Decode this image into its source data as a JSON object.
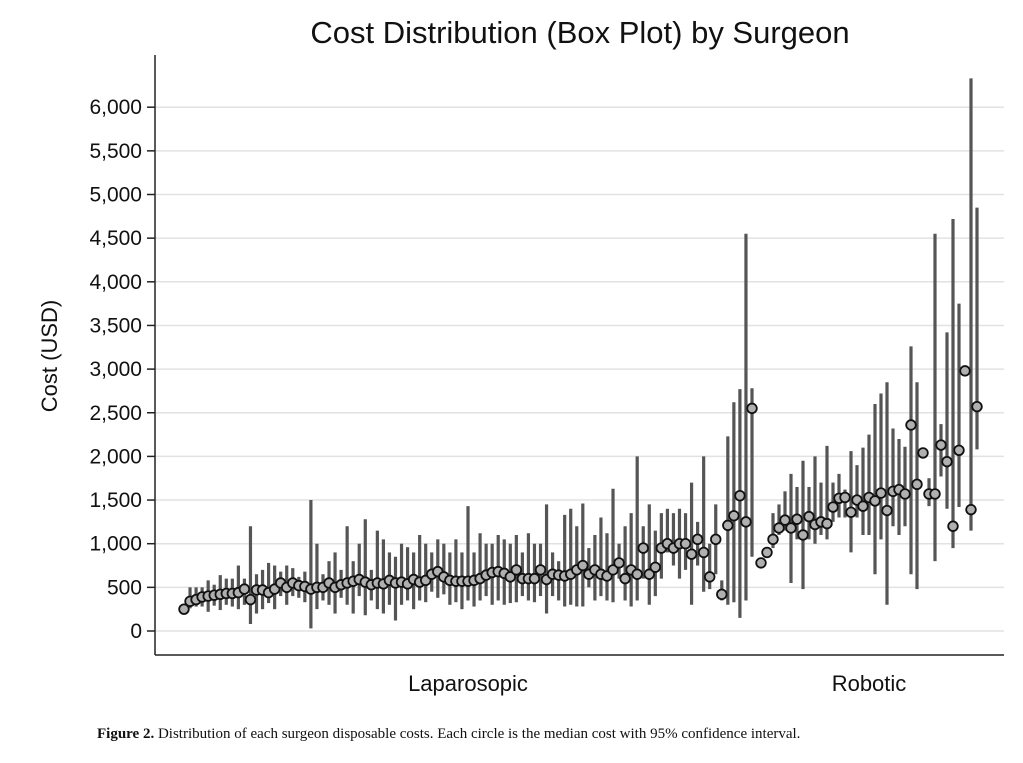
{
  "chart_data": {
    "type": "scatter",
    "subtype": "median-with-confidence-interval",
    "title": "Cost Distribution (Box Plot) by Surgeon",
    "xlabel": "",
    "ylabel": "Cost (USD)",
    "ylim": [
      -250,
      6600
    ],
    "yticks": [
      0,
      500,
      1000,
      1500,
      2000,
      2500,
      3000,
      3500,
      4000,
      4500,
      5000,
      5500,
      6000
    ],
    "ytick_labels": [
      "0",
      "500",
      "1,000",
      "1,500",
      "2,000",
      "2,500",
      "3,000",
      "3,500",
      "4,000",
      "4,500",
      "5,000",
      "5,500",
      "6,000"
    ],
    "grid": true,
    "legend": null,
    "groups": [
      {
        "name": "Laparosopic",
        "series": [
          {
            "median": 250,
            "low": 220,
            "high": 290
          },
          {
            "median": 340,
            "low": 260,
            "high": 500
          },
          {
            "median": 360,
            "low": 280,
            "high": 500
          },
          {
            "median": 390,
            "low": 280,
            "high": 500
          },
          {
            "median": 400,
            "low": 220,
            "high": 580
          },
          {
            "median": 410,
            "low": 290,
            "high": 530
          },
          {
            "median": 420,
            "low": 240,
            "high": 640
          },
          {
            "median": 430,
            "low": 300,
            "high": 600
          },
          {
            "median": 430,
            "low": 280,
            "high": 600
          },
          {
            "median": 440,
            "low": 250,
            "high": 750
          },
          {
            "median": 480,
            "low": 300,
            "high": 600
          },
          {
            "median": 360,
            "low": 80,
            "high": 1200
          },
          {
            "median": 470,
            "low": 200,
            "high": 650
          },
          {
            "median": 470,
            "low": 250,
            "high": 700
          },
          {
            "median": 440,
            "low": 320,
            "high": 780
          },
          {
            "median": 480,
            "low": 250,
            "high": 750
          },
          {
            "median": 550,
            "low": 400,
            "high": 680
          },
          {
            "median": 500,
            "low": 300,
            "high": 750
          },
          {
            "median": 550,
            "low": 400,
            "high": 720
          },
          {
            "median": 520,
            "low": 380,
            "high": 620
          },
          {
            "median": 510,
            "low": 330,
            "high": 680
          },
          {
            "median": 480,
            "low": 30,
            "high": 1500
          },
          {
            "median": 500,
            "low": 250,
            "high": 1000
          },
          {
            "median": 500,
            "low": 350,
            "high": 650
          },
          {
            "median": 550,
            "low": 300,
            "high": 800
          },
          {
            "median": 500,
            "low": 200,
            "high": 900
          },
          {
            "median": 530,
            "low": 380,
            "high": 700
          },
          {
            "median": 550,
            "low": 300,
            "high": 1200
          },
          {
            "median": 570,
            "low": 200,
            "high": 800
          },
          {
            "median": 590,
            "low": 400,
            "high": 1000
          },
          {
            "median": 560,
            "low": 180,
            "high": 1280
          },
          {
            "median": 530,
            "low": 350,
            "high": 700
          },
          {
            "median": 550,
            "low": 250,
            "high": 1150
          },
          {
            "median": 540,
            "low": 200,
            "high": 1050
          },
          {
            "median": 580,
            "low": 300,
            "high": 900
          },
          {
            "median": 550,
            "low": 120,
            "high": 850
          },
          {
            "median": 560,
            "low": 300,
            "high": 1000
          },
          {
            "median": 540,
            "low": 350,
            "high": 960
          },
          {
            "median": 590,
            "low": 250,
            "high": 900
          },
          {
            "median": 560,
            "low": 350,
            "high": 1100
          },
          {
            "median": 580,
            "low": 330,
            "high": 1000
          },
          {
            "median": 650,
            "low": 450,
            "high": 900
          },
          {
            "median": 680,
            "low": 380,
            "high": 1050
          },
          {
            "median": 620,
            "low": 420,
            "high": 1000
          },
          {
            "median": 580,
            "low": 300,
            "high": 900
          },
          {
            "median": 570,
            "low": 330,
            "high": 1050
          },
          {
            "median": 570,
            "low": 250,
            "high": 900
          },
          {
            "median": 570,
            "low": 350,
            "high": 1430
          },
          {
            "median": 580,
            "low": 280,
            "high": 900
          },
          {
            "median": 600,
            "low": 350,
            "high": 1120
          },
          {
            "median": 640,
            "low": 400,
            "high": 1000
          },
          {
            "median": 670,
            "low": 300,
            "high": 1000
          },
          {
            "median": 680,
            "low": 350,
            "high": 1100
          },
          {
            "median": 660,
            "low": 300,
            "high": 1050
          },
          {
            "median": 620,
            "low": 320,
            "high": 1000
          },
          {
            "median": 700,
            "low": 330,
            "high": 1100
          },
          {
            "median": 600,
            "low": 400,
            "high": 900
          },
          {
            "median": 600,
            "low": 350,
            "high": 1120
          },
          {
            "median": 600,
            "low": 330,
            "high": 1000
          },
          {
            "median": 700,
            "low": 400,
            "high": 1000
          },
          {
            "median": 590,
            "low": 200,
            "high": 1450
          },
          {
            "median": 650,
            "low": 400,
            "high": 900
          },
          {
            "median": 640,
            "low": 350,
            "high": 800
          },
          {
            "median": 630,
            "low": 280,
            "high": 1330
          },
          {
            "median": 650,
            "low": 300,
            "high": 1400
          },
          {
            "median": 700,
            "low": 280,
            "high": 1200
          },
          {
            "median": 750,
            "low": 280,
            "high": 1460
          },
          {
            "median": 650,
            "low": 500,
            "high": 950
          },
          {
            "median": 700,
            "low": 350,
            "high": 1100
          },
          {
            "median": 650,
            "low": 400,
            "high": 1300
          },
          {
            "median": 630,
            "low": 350,
            "high": 1120
          },
          {
            "median": 700,
            "low": 330,
            "high": 1630
          },
          {
            "median": 780,
            "low": 600,
            "high": 1000
          },
          {
            "median": 600,
            "low": 350,
            "high": 1200
          },
          {
            "median": 700,
            "low": 280,
            "high": 1350
          },
          {
            "median": 650,
            "low": 350,
            "high": 2000
          },
          {
            "median": 950,
            "low": 600,
            "high": 1200
          },
          {
            "median": 650,
            "low": 300,
            "high": 1450
          },
          {
            "median": 730,
            "low": 400,
            "high": 1150
          },
          {
            "median": 950,
            "low": 600,
            "high": 1350
          },
          {
            "median": 1000,
            "low": 900,
            "high": 1400
          },
          {
            "median": 950,
            "low": 750,
            "high": 1350
          },
          {
            "median": 1000,
            "low": 600,
            "high": 1400
          },
          {
            "median": 1000,
            "low": 700,
            "high": 1350
          },
          {
            "median": 880,
            "low": 300,
            "high": 1700
          },
          {
            "median": 1050,
            "low": 750,
            "high": 1250
          },
          {
            "median": 900,
            "low": 450,
            "high": 2000
          },
          {
            "median": 620,
            "low": 480,
            "high": 1000
          },
          {
            "median": 1050,
            "low": 650,
            "high": 1450
          },
          {
            "median": 420,
            "low": 350,
            "high": 580
          },
          {
            "median": 1210,
            "low": 300,
            "high": 2230
          },
          {
            "median": 1320,
            "low": 330,
            "high": 2620
          },
          {
            "median": 1550,
            "low": 150,
            "high": 2770
          },
          {
            "median": 1250,
            "low": 350,
            "high": 4550
          },
          {
            "median": 2550,
            "low": 850,
            "high": 2780
          }
        ]
      },
      {
        "name": "Robotic",
        "series": [
          {
            "median": 780,
            "low": 780,
            "high": 780
          },
          {
            "median": 900,
            "low": 900,
            "high": 900
          },
          {
            "median": 1050,
            "low": 950,
            "high": 1350
          },
          {
            "median": 1180,
            "low": 1100,
            "high": 1450
          },
          {
            "median": 1270,
            "low": 1150,
            "high": 1600
          },
          {
            "median": 1180,
            "low": 550,
            "high": 1800
          },
          {
            "median": 1280,
            "low": 1050,
            "high": 1650
          },
          {
            "median": 1100,
            "low": 480,
            "high": 1950
          },
          {
            "median": 1310,
            "low": 1050,
            "high": 1650
          },
          {
            "median": 1220,
            "low": 1000,
            "high": 2000
          },
          {
            "median": 1250,
            "low": 1100,
            "high": 1700
          },
          {
            "median": 1230,
            "low": 1050,
            "high": 2120
          },
          {
            "median": 1420,
            "low": 1250,
            "high": 1700
          },
          {
            "median": 1520,
            "low": 1300,
            "high": 1800
          },
          {
            "median": 1530,
            "low": 1300,
            "high": 1620
          },
          {
            "median": 1360,
            "low": 900,
            "high": 2060
          },
          {
            "median": 1500,
            "low": 1300,
            "high": 1900
          },
          {
            "median": 1430,
            "low": 1100,
            "high": 2100
          },
          {
            "median": 1530,
            "low": 1100,
            "high": 2250
          },
          {
            "median": 1490,
            "low": 650,
            "high": 2600
          },
          {
            "median": 1580,
            "low": 1050,
            "high": 2720
          },
          {
            "median": 1380,
            "low": 300,
            "high": 2850
          },
          {
            "median": 1600,
            "low": 1200,
            "high": 2320
          },
          {
            "median": 1620,
            "low": 1100,
            "high": 2200
          },
          {
            "median": 1570,
            "low": 1200,
            "high": 2110
          },
          {
            "median": 2360,
            "low": 650,
            "high": 3260
          },
          {
            "median": 1680,
            "low": 480,
            "high": 2850
          },
          {
            "median": 2040,
            "low": 2040,
            "high": 2040
          },
          {
            "median": 1570,
            "low": 1430,
            "high": 1750
          },
          {
            "median": 1570,
            "low": 800,
            "high": 4550
          },
          {
            "median": 2130,
            "low": 1770,
            "high": 2370
          },
          {
            "median": 1940,
            "low": 1400,
            "high": 3420
          },
          {
            "median": 1200,
            "low": 950,
            "high": 4720
          },
          {
            "median": 2070,
            "low": 1420,
            "high": 3750
          },
          {
            "median": 2980,
            "low": 2980,
            "high": 2980
          },
          {
            "median": 1390,
            "low": 1150,
            "high": 6330
          },
          {
            "median": 2570,
            "low": 2080,
            "high": 4850
          }
        ]
      }
    ],
    "category_labels": [
      "Laparosopic",
      "Robotic"
    ],
    "marker": "circle (median)",
    "interval": "95% confidence interval"
  },
  "caption": {
    "label": "Figure 2.",
    "text": "Distribution of each surgeon disposable costs. Each circle is the median cost with 95% confidence interval."
  },
  "colors": {
    "whisker": "#555555",
    "marker_fill": "#b0b0b0",
    "marker_stroke": "#111111",
    "grid": "#e2e2e2",
    "axis": "#222222"
  }
}
